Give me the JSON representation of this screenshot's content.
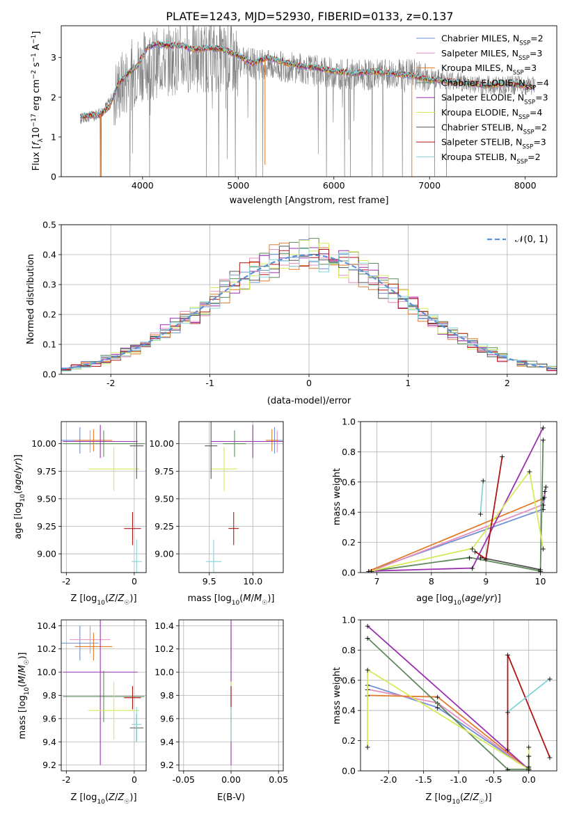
{
  "figure_title": "PLATE=1243, MJD=52930, FIBERID=0133, z=0.137",
  "colors": {
    "Chabrier MILES": "#6f8fd6",
    "Salpeter MILES": "#e58fbf",
    "Kroupa MILES": "#e07b2a",
    "Chabrier ELODIE": "#5f8a5c",
    "Salpeter ELODIE": "#9a2fb0",
    "Kroupa ELODIE": "#d6ea5a",
    "Chabrier STELIB": "#555555",
    "Salpeter STELIB": "#b01515",
    "Kroupa STELIB": "#86d3d6",
    "data": "#7f7f7f",
    "normal": "#5b8fd6"
  },
  "chart_data": [
    {
      "id": "spectrum",
      "type": "line",
      "title": "",
      "xlabel": "wavelength [Angstrom, rest frame]",
      "ylabel": "Flux [f_λ10^{-17} erg cm^{-2} s^{-1} A^{-1}]",
      "xlim": [
        3150,
        8330
      ],
      "ylim": [
        0,
        3.8
      ],
      "xticks": [
        4000,
        5000,
        6000,
        7000,
        8000
      ],
      "yticks": [
        0,
        1,
        2,
        3
      ],
      "legend_position": "top-right",
      "legend": [
        {
          "model": "Chabrier MILES",
          "label": "Chabrier MILES, N",
          "sub": "SSP",
          "n": "=2"
        },
        {
          "model": "Salpeter MILES",
          "label": "Salpeter MILES, N",
          "sub": "SSP",
          "n": "=3"
        },
        {
          "model": "Kroupa MILES",
          "label": "Kroupa MILES, N",
          "sub": "SSP",
          "n": "=3"
        },
        {
          "model": "Chabrier ELODIE",
          "label": "Chabrier ELODIE, N",
          "sub": "SSP",
          "n": "=4"
        },
        {
          "model": "Salpeter ELODIE",
          "label": "Salpeter ELODIE, N",
          "sub": "SSP",
          "n": "=3"
        },
        {
          "model": "Kroupa ELODIE",
          "label": "Kroupa ELODIE, N",
          "sub": "SSP",
          "n": "=4"
        },
        {
          "model": "Chabrier STELIB",
          "label": "Chabrier STELIB, N",
          "sub": "SSP",
          "n": "=2"
        },
        {
          "model": "Salpeter STELIB",
          "label": "Salpeter STELIB, N",
          "sub": "SSP",
          "n": "=3"
        },
        {
          "model": "Kroupa STELIB",
          "label": "Kroupa STELIB, N",
          "sub": "SSP",
          "n": "=2"
        }
      ],
      "data_envelope": {
        "wavelength": [
          3350,
          3500,
          3600,
          3750,
          3900,
          4000,
          4200,
          4500,
          4800,
          5000,
          5300,
          5600,
          6000,
          6400,
          6800,
          7000,
          7300,
          7500,
          7800,
          8100
        ],
        "flux": [
          1.45,
          1.55,
          1.7,
          2.2,
          2.6,
          2.8,
          2.9,
          3.0,
          3.0,
          2.9,
          2.8,
          2.75,
          2.6,
          2.55,
          2.6,
          2.5,
          2.4,
          2.3,
          2.3,
          2.3
        ]
      },
      "model_continuum": {
        "wavelength": [
          3350,
          3450,
          3550,
          3650,
          3750,
          3850,
          3950,
          4050,
          4150,
          4250,
          4400,
          4550,
          4700,
          4850,
          5000,
          5150,
          5300,
          5450,
          5600,
          5800,
          6000,
          6200,
          6400,
          6600,
          6800,
          7000,
          7200,
          7400,
          7600,
          7800,
          8000,
          8100
        ],
        "flux": [
          1.5,
          1.55,
          1.55,
          1.75,
          2.35,
          2.6,
          2.8,
          3.25,
          3.35,
          3.3,
          3.3,
          3.2,
          3.25,
          3.2,
          3.05,
          2.85,
          3.0,
          2.9,
          2.8,
          2.75,
          2.65,
          2.6,
          2.65,
          2.6,
          2.55,
          2.45,
          2.4,
          2.35,
          2.3,
          2.35,
          2.3,
          2.25
        ]
      }
    },
    {
      "id": "residuals",
      "type": "line",
      "xlabel": "(data-model)/error",
      "ylabel": "Normed distribution",
      "xlim": [
        -2.5,
        2.5
      ],
      "ylim": [
        0,
        0.5
      ],
      "xticks": [
        -2,
        -1,
        0,
        1,
        2
      ],
      "yticks": [
        0.0,
        0.1,
        0.2,
        0.3,
        0.4,
        0.5
      ],
      "legend_position": "top-right",
      "legend_label": "𝒩(0, 1)",
      "normal_curve": {
        "mean": 0,
        "sigma": 1
      },
      "bin_width": 0.1,
      "histogram_note": "step histograms for each of the nine models approximately following N(0,1)"
    },
    {
      "id": "age-vs-Z",
      "type": "scatter",
      "xlabel": "Z [log10(Z/Z☉)]",
      "ylabel": "age  [log10(age/yr)]",
      "xlim": [
        -2.15,
        0.35
      ],
      "ylim": [
        8.83,
        10.2
      ],
      "xticks": [
        -2,
        0
      ],
      "yticks": [
        9.0,
        9.25,
        9.5,
        9.75,
        10.0
      ]
    },
    {
      "id": "age-vs-mass",
      "type": "scatter",
      "xlabel": "mass [log10(M/M☉)]",
      "ylabel": "",
      "xlim": [
        9.15,
        10.35
      ],
      "ylim": [
        8.83,
        10.2
      ],
      "xticks": [
        9.5,
        10.0
      ],
      "yticks": [
        9.0,
        9.25,
        9.5,
        9.75,
        10.0
      ]
    },
    {
      "id": "weight-vs-age",
      "type": "line",
      "xlabel": "age  [log10(age/yr)]",
      "ylabel": "mass weight",
      "xlim": [
        6.7,
        10.3
      ],
      "ylim": [
        0,
        1.0
      ],
      "xticks": [
        7,
        8,
        9,
        10
      ],
      "yticks": [
        0.0,
        0.2,
        0.4,
        0.6,
        0.8,
        1.0
      ]
    },
    {
      "id": "mass-vs-Z",
      "type": "scatter",
      "xlabel": "Z [log10(Z/Z☉)]",
      "ylabel": "mass [log10(M/M☉)]",
      "xlim": [
        -2.15,
        0.35
      ],
      "ylim": [
        9.15,
        10.45
      ],
      "xticks": [
        -2,
        0
      ],
      "yticks": [
        9.2,
        9.4,
        9.6,
        9.8,
        10.0,
        10.2,
        10.4
      ]
    },
    {
      "id": "mass-vs-ebv",
      "type": "scatter",
      "xlabel": "E(B-V)",
      "ylabel": "",
      "xlim": [
        -0.055,
        0.055
      ],
      "ylim": [
        9.15,
        10.45
      ],
      "xticks": [
        -0.05,
        0.0,
        0.05
      ],
      "yticks": [
        9.2,
        9.4,
        9.6,
        9.8,
        10.0,
        10.2,
        10.4
      ]
    },
    {
      "id": "weight-vs-Z",
      "type": "line",
      "xlabel": "Z [log10(Z/Z☉)]",
      "ylabel": "mass weight",
      "xlim": [
        -2.4,
        0.4
      ],
      "ylim": [
        0,
        1.0
      ],
      "xticks": [
        -2.0,
        -1.5,
        -1.0,
        -0.5,
        0.0
      ],
      "yticks": [
        0.0,
        0.2,
        0.4,
        0.6,
        0.8,
        1.0
      ]
    }
  ],
  "models": [
    {
      "name": "Chabrier MILES",
      "age": 10.03,
      "age_err": 0.12,
      "Z": -1.6,
      "Z_err": 0.55,
      "mass": 10.25,
      "mass_err": 0.15,
      "components": [
        {
          "age": 10.1,
          "Z": -2.3,
          "w": 0.57
        },
        {
          "age": 10.05,
          "Z": -1.3,
          "w": 0.42
        },
        {
          "age": 6.85,
          "Z": 0.0,
          "w": 0.01
        }
      ]
    },
    {
      "name": "Salpeter MILES",
      "age": 10.02,
      "age_err": 0.1,
      "Z": -1.3,
      "Z_err": 0.6,
      "mass": 10.28,
      "mass_err": 0.12,
      "components": [
        {
          "age": 10.08,
          "Z": -2.3,
          "w": 0.54
        },
        {
          "age": 10.05,
          "Z": -1.3,
          "w": 0.45
        },
        {
          "age": 6.9,
          "Z": 0.0,
          "w": 0.01
        }
      ]
    },
    {
      "name": "Kroupa MILES",
      "age": 10.03,
      "age_err": 0.1,
      "Z": -1.2,
      "Z_err": 0.55,
      "mass": 10.22,
      "mass_err": 0.12,
      "components": [
        {
          "age": 10.07,
          "Z": -2.3,
          "w": 0.5
        },
        {
          "age": 10.05,
          "Z": -1.3,
          "w": 0.49
        },
        {
          "age": 6.85,
          "Z": 0.0,
          "w": 0.01
        }
      ]
    },
    {
      "name": "Chabrier ELODIE",
      "age": 10.0,
      "age_err": 0.12,
      "Z": -0.9,
      "Z_err": 1.2,
      "mass": 9.79,
      "mass_err": 0.22,
      "components": [
        {
          "age": 10.05,
          "Z": -2.3,
          "w": 0.88
        },
        {
          "age": 8.7,
          "Z": 0.0,
          "w": 0.1
        },
        {
          "age": 6.9,
          "Z": 0.0,
          "w": 0.01
        },
        {
          "age": 10.0,
          "Z": -0.3,
          "w": 0.01
        }
      ]
    },
    {
      "name": "Salpeter ELODIE",
      "age": 10.02,
      "age_err": 0.15,
      "Z": -1.0,
      "Z_err": 1.1,
      "mass": 10.0,
      "mass_err": 0.8,
      "components": [
        {
          "age": 10.05,
          "Z": -2.3,
          "w": 0.96
        },
        {
          "age": 8.75,
          "Z": 0.0,
          "w": 0.03
        },
        {
          "age": 6.9,
          "Z": 0.0,
          "w": 0.01
        }
      ]
    },
    {
      "name": "Kroupa ELODIE",
      "age": 9.77,
      "age_err": 0.2,
      "Z": -0.6,
      "Z_err": 0.75,
      "mass": 9.67,
      "mass_err": 0.25,
      "components": [
        {
          "age": 9.8,
          "Z": -2.3,
          "w": 0.67
        },
        {
          "age": 10.05,
          "Z": -2.3,
          "w": 0.16
        },
        {
          "age": 8.75,
          "Z": 0.0,
          "w": 0.16
        },
        {
          "age": 6.9,
          "Z": 0.0,
          "w": 0.01
        }
      ]
    },
    {
      "name": "Chabrier STELIB",
      "age": 9.98,
      "age_err": 0.3,
      "Z": 0.07,
      "Z_err": 0.2,
      "mass": 9.52,
      "mass_err": 0.12,
      "components": [
        {
          "age": 8.9,
          "Z": 0.0,
          "w": 0.1
        },
        {
          "age": 10.0,
          "Z": 0.0,
          "w": 0.02
        }
      ]
    },
    {
      "name": "Salpeter STELIB",
      "age": 9.23,
      "age_err": 0.15,
      "Z": -0.05,
      "Z_err": 0.25,
      "mass": 9.78,
      "mass_err": 0.1,
      "components": [
        {
          "age": 9.3,
          "Z": -0.3,
          "w": 0.77
        },
        {
          "age": 8.8,
          "Z": -0.3,
          "w": 0.14
        },
        {
          "age": 9.0,
          "Z": 0.3,
          "w": 0.09
        }
      ]
    },
    {
      "name": "Kroupa STELIB",
      "age": 8.93,
      "age_err": 0.2,
      "Z": 0.07,
      "Z_err": 0.15,
      "mass": 9.55,
      "mass_err": 0.15,
      "components": [
        {
          "age": 8.95,
          "Z": 0.3,
          "w": 0.61
        },
        {
          "age": 8.9,
          "Z": -0.3,
          "w": 0.39
        }
      ]
    }
  ]
}
